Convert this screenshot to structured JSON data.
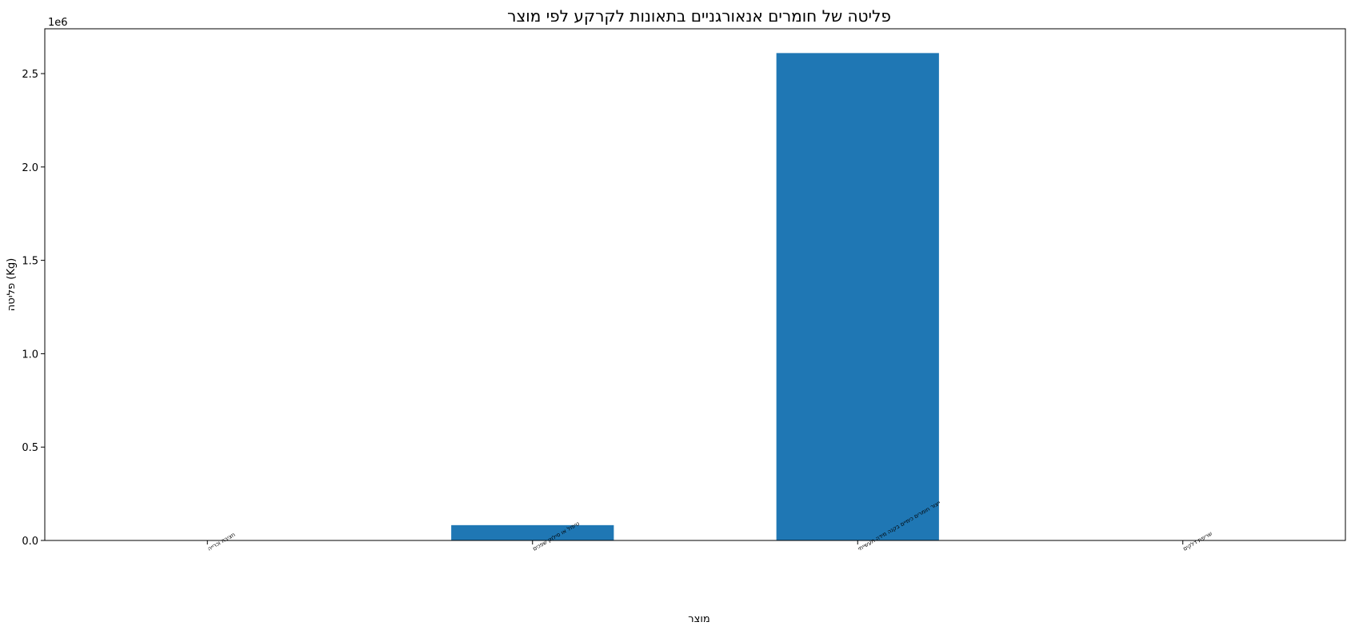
{
  "chart_data": {
    "type": "bar",
    "title": "פליטה של חומרים אנאורגניים בתאונות לקרקע לפי מוצר",
    "xlabel": "מוצר",
    "ylabel": "פליטה (Kg)",
    "y_offset_label": "1e6",
    "categories": [
      "חציבה וכרייה",
      "טיפול או סילוק שפכים",
      "ייצור חומרים כימיים בקנה מידה תעשייתי",
      "שריפת דלקים"
    ],
    "values": [
      2000,
      82000,
      2610000,
      0
    ],
    "ylim": [
      0,
      2740000
    ],
    "yticks": [
      0,
      500000,
      1000000,
      1500000,
      2000000,
      2500000
    ],
    "ytick_labels": [
      "0.0",
      "0.5",
      "1.0",
      "1.5",
      "2.0",
      "2.5"
    ],
    "bar_color": "#1f77b4",
    "grid": false,
    "legend": "none"
  }
}
